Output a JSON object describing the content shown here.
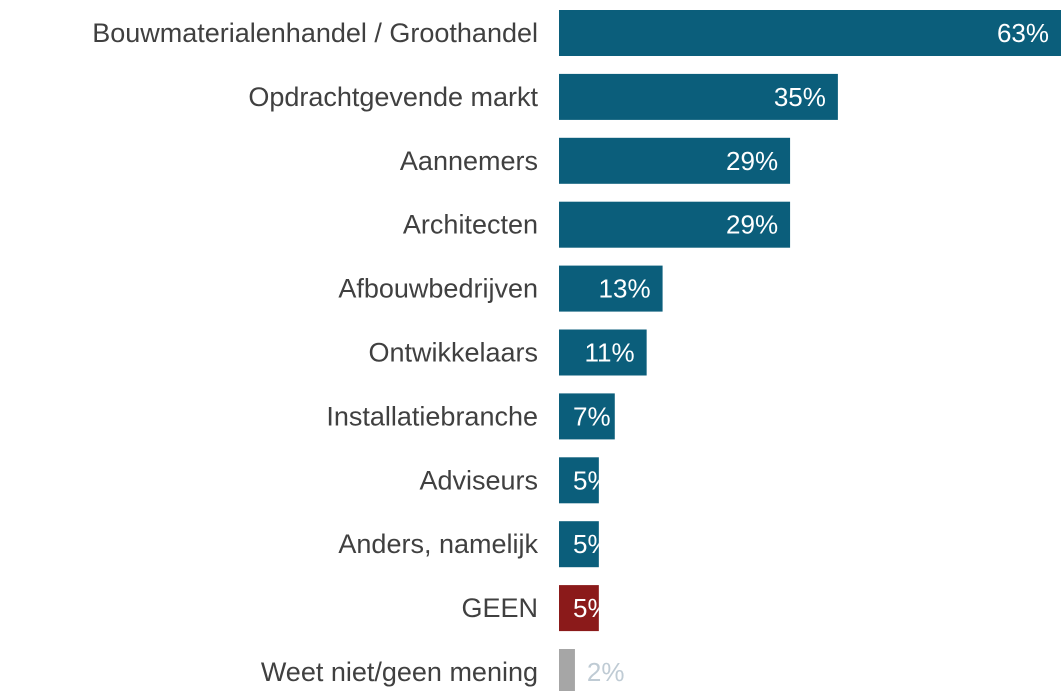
{
  "chart_data": {
    "type": "bar",
    "orientation": "horizontal",
    "categories": [
      "Bouwmaterialenhandel / Groothandel",
      "Opdrachtgevende markt",
      "Aannemers",
      "Architecten",
      "Afbouwbedrijven",
      "Ontwikkelaars",
      "Installatiebranche",
      "Adviseurs",
      "Anders, namelijk",
      "GEEN",
      "Weet niet/geen mening"
    ],
    "values": [
      63,
      35,
      29,
      29,
      13,
      11,
      7,
      5,
      5,
      5,
      2
    ],
    "value_labels": [
      "63%",
      "35%",
      "29%",
      "29%",
      "13%",
      "11%",
      "7%",
      "5%",
      "5%",
      "5%",
      "2%"
    ],
    "colors": [
      "#0b5e7b",
      "#0b5e7b",
      "#0b5e7b",
      "#0b5e7b",
      "#0b5e7b",
      "#0b5e7b",
      "#0b5e7b",
      "#0b5e7b",
      "#0b5e7b",
      "#8b1a1a",
      "#a6a6a6"
    ],
    "label_colors": [
      "#ffffff",
      "#ffffff",
      "#ffffff",
      "#ffffff",
      "#ffffff",
      "#ffffff",
      "#ffffff",
      "#ffffff",
      "#ffffff",
      "#ffffff",
      "#bfcbd4"
    ],
    "xlim": [
      0,
      63
    ]
  }
}
